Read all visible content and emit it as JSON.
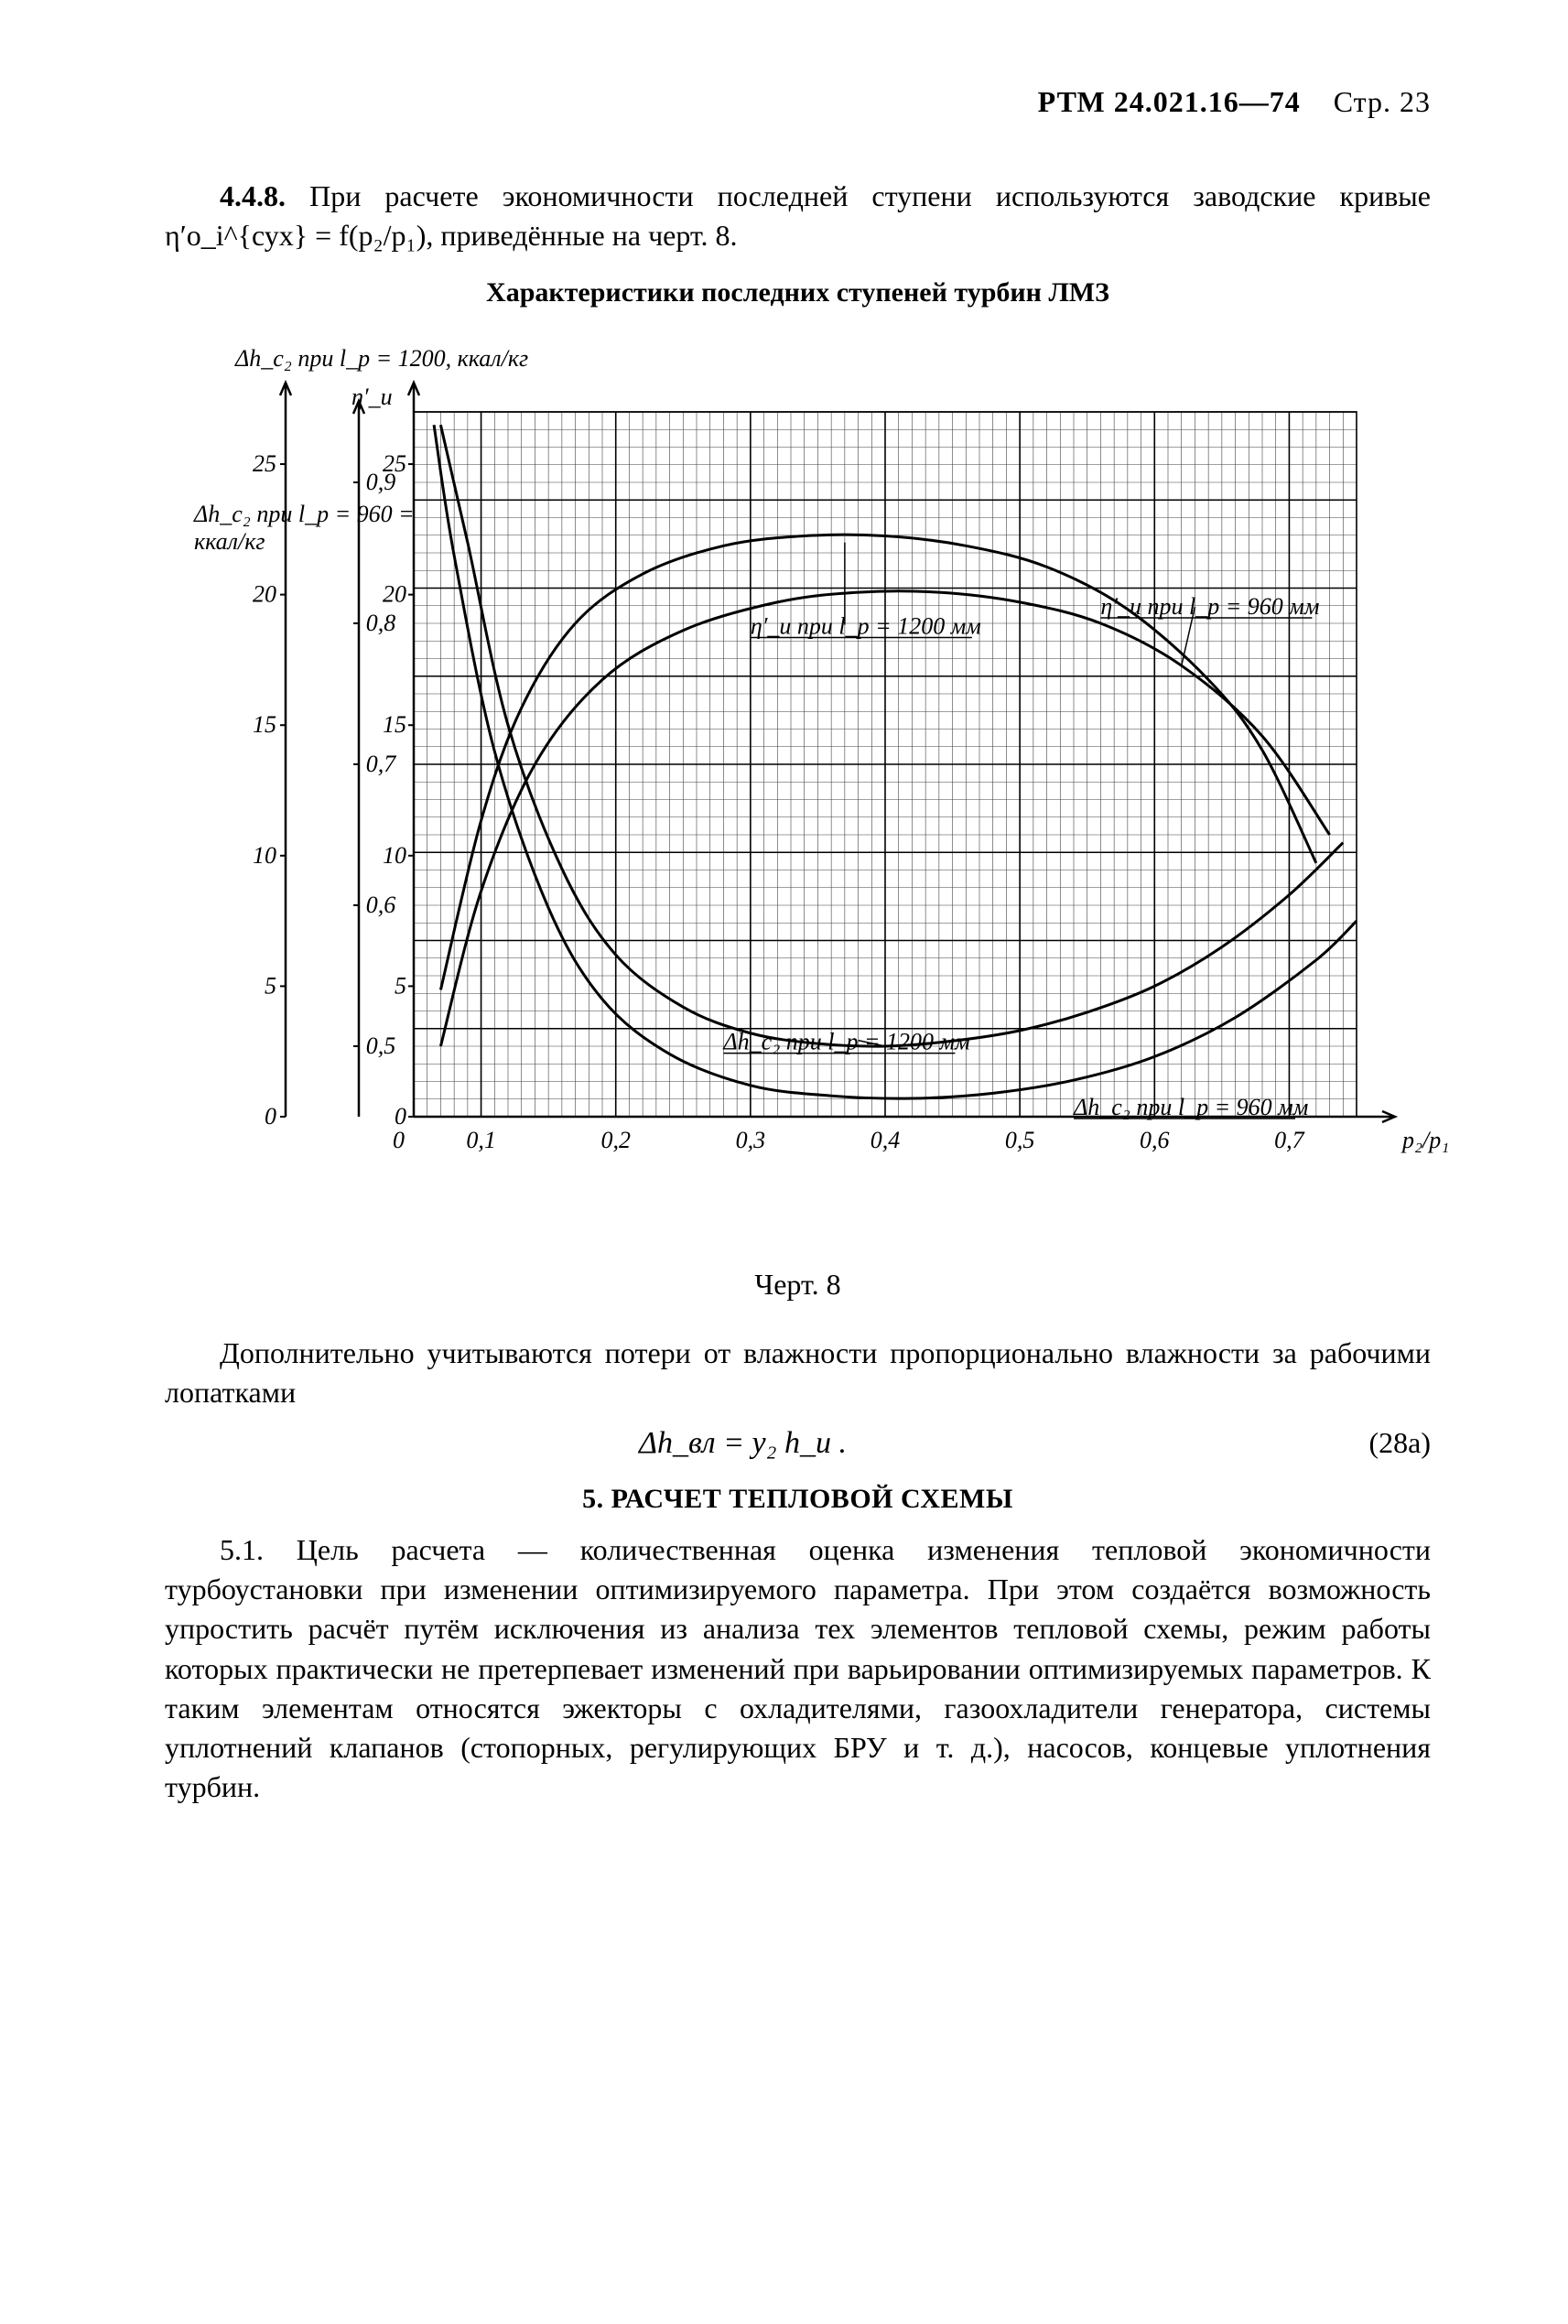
{
  "header": {
    "doc": "РТМ 24.021.16—74",
    "page": "Стр. 23"
  },
  "p448": {
    "num": "4.4.8.",
    "text": "При расчете экономичности последней ступени используются заводские кривые η′о_i^{сух} = f(p₂/p₁), приведённые на черт. 8."
  },
  "chart_title": "Характеристики последних ступеней турбин ЛМЗ",
  "chart": {
    "type": "line",
    "background_color": "#ffffff",
    "grid_color": "#000000",
    "axis_color": "#000000",
    "font": {
      "family": "Times New Roman",
      "size_pt": 10,
      "italic": true
    },
    "x_axis": {
      "label": "p₂/p₁",
      "min": 0.05,
      "max": 0.75,
      "ticks": [
        0.1,
        0.2,
        0.3,
        0.4,
        0.5,
        0.6,
        0.7
      ],
      "tick_labels": [
        "0,1",
        "0,2",
        "0,3",
        "0,4",
        "0,5",
        "0,6",
        "0,7"
      ],
      "zero_label": "0"
    },
    "y_axes": {
      "dh_1200": {
        "title": "Δh_c₂ при l_p = 1200, ккал/кг",
        "ticks": [
          0,
          5,
          10,
          15,
          20,
          25
        ],
        "min": 0,
        "max": 27
      },
      "eta": {
        "title": "η′_u",
        "ticks": [
          0.5,
          0.6,
          0.7,
          0.8,
          0.9
        ],
        "min": 0.45,
        "max": 0.95
      },
      "dh_960": {
        "title": "Δh_c₂ при l_p = 960, ккал/кг",
        "ticks": [
          0,
          5,
          10,
          15,
          20,
          25
        ],
        "min": 0,
        "max": 27
      }
    },
    "series": {
      "eta_1200": {
        "label": "η′_u при l_p = 1200 мм",
        "axis": "eta",
        "color": "#000000",
        "linewidth": 3,
        "data": [
          [
            0.07,
            0.54
          ],
          [
            0.1,
            0.66
          ],
          [
            0.13,
            0.74
          ],
          [
            0.17,
            0.8
          ],
          [
            0.22,
            0.835
          ],
          [
            0.28,
            0.855
          ],
          [
            0.34,
            0.862
          ],
          [
            0.4,
            0.862
          ],
          [
            0.46,
            0.855
          ],
          [
            0.52,
            0.84
          ],
          [
            0.58,
            0.81
          ],
          [
            0.64,
            0.76
          ],
          [
            0.68,
            0.71
          ],
          [
            0.72,
            0.63
          ]
        ]
      },
      "eta_960": {
        "label": "η′_u при l_p = 960 мм",
        "axis": "eta",
        "color": "#000000",
        "linewidth": 3,
        "data": [
          [
            0.07,
            0.5
          ],
          [
            0.1,
            0.61
          ],
          [
            0.14,
            0.7
          ],
          [
            0.19,
            0.76
          ],
          [
            0.25,
            0.795
          ],
          [
            0.32,
            0.815
          ],
          [
            0.38,
            0.822
          ],
          [
            0.44,
            0.822
          ],
          [
            0.5,
            0.815
          ],
          [
            0.56,
            0.8
          ],
          [
            0.62,
            0.77
          ],
          [
            0.68,
            0.72
          ],
          [
            0.73,
            0.65
          ]
        ]
      },
      "dh_1200": {
        "label": "Δh_c₂ при l_p = 1200 мм",
        "axis": "dh_1200",
        "color": "#000000",
        "linewidth": 3,
        "data": [
          [
            0.07,
            26.5
          ],
          [
            0.09,
            22.0
          ],
          [
            0.12,
            15.0
          ],
          [
            0.16,
            9.5
          ],
          [
            0.2,
            6.2
          ],
          [
            0.25,
            4.2
          ],
          [
            0.3,
            3.2
          ],
          [
            0.35,
            2.8
          ],
          [
            0.4,
            2.7
          ],
          [
            0.45,
            2.9
          ],
          [
            0.5,
            3.3
          ],
          [
            0.55,
            4.0
          ],
          [
            0.6,
            5.0
          ],
          [
            0.65,
            6.5
          ],
          [
            0.7,
            8.5
          ],
          [
            0.74,
            10.5
          ]
        ]
      },
      "dh_960": {
        "label": "Δh_c₂ при l_p = 960 мм",
        "axis": "dh_960",
        "color": "#000000",
        "linewidth": 3,
        "data": [
          [
            0.065,
            26.5
          ],
          [
            0.08,
            21.5
          ],
          [
            0.11,
            14.0
          ],
          [
            0.15,
            8.0
          ],
          [
            0.19,
            4.5
          ],
          [
            0.24,
            2.4
          ],
          [
            0.3,
            1.2
          ],
          [
            0.36,
            0.8
          ],
          [
            0.42,
            0.7
          ],
          [
            0.48,
            0.9
          ],
          [
            0.54,
            1.4
          ],
          [
            0.6,
            2.3
          ],
          [
            0.66,
            3.8
          ],
          [
            0.72,
            6.0
          ],
          [
            0.75,
            7.5
          ]
        ]
      }
    },
    "annotations": {
      "eta_1200": "η′_u при l_p = 1200 мм",
      "eta_960": "η′_u при l_p = 960 мм",
      "dh_1200": "Δh_c₂ при l_p = 1200 мм",
      "dh_960": "Δh_c₂ при l_p = 960 мм"
    }
  },
  "fig_caption": "Черт. 8",
  "p_after_fig": "Дополнительно учитываются потери от влажности пропорционально влажности за рабочими лопатками",
  "formula": {
    "text": "Δh_вл = y₂ h_u .",
    "num": "(28а)"
  },
  "section5_head": "5. РАСЧЕТ ТЕПЛОВОЙ СХЕМЫ",
  "p51": {
    "num": "5.1.",
    "text": "Цель расчета — количественная оценка изменения тепловой экономичности турбоустановки при изменении оптимизируемого параметра. При этом создаётся возможность упростить расчёт путём исключения из анализа тех элементов тепловой схемы, режим работы которых практически не претерпевает изменений при варьировании оптимизируемых параметров. К таким элементам относятся эжекторы с охладителями, газоохладители генератора, системы уплотнений клапанов (стопорных, регулирующих БРУ и т. д.), насосов, концевые уплотнения турбин."
  }
}
